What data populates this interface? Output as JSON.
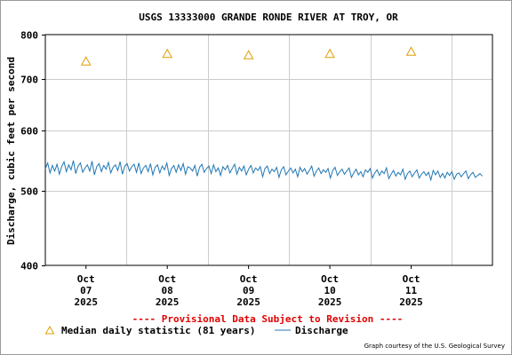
{
  "chart_data": {
    "type": "line",
    "title": "USGS 13333000 GRANDE RONDE RIVER AT TROY, OR",
    "ylabel": "Discharge, cubic feet per second",
    "xlabel": "",
    "yscale": "log",
    "ylim": [
      400,
      800
    ],
    "yticks": [
      "800",
      "700",
      "600",
      "500",
      "400"
    ],
    "xlim": [
      "2025-10-06",
      "2025-10-11T12:00"
    ],
    "xticks": [
      {
        "month": "Oct",
        "day": "07",
        "year": "2025"
      },
      {
        "month": "Oct",
        "day": "08",
        "year": "2025"
      },
      {
        "month": "Oct",
        "day": "09",
        "year": "2025"
      },
      {
        "month": "Oct",
        "day": "10",
        "year": "2025"
      },
      {
        "month": "Oct",
        "day": "11",
        "year": "2025"
      }
    ],
    "grid": true,
    "legend_position": "bottom",
    "series": [
      {
        "name": "Median daily statistic (81 years)",
        "kind": "marker",
        "color": "#e0a000",
        "x": [
          "2025-10-06T12:00",
          "2025-10-07T12:00",
          "2025-10-08T12:00",
          "2025-10-09T12:00",
          "2025-10-10T12:00"
        ],
        "values": [
          738,
          755,
          752,
          755,
          760
        ]
      },
      {
        "name": "Discharge",
        "kind": "line",
        "color": "#1f77b4",
        "x_start": "2025-10-06T00:00",
        "x_end": "2025-10-11T09:00",
        "values": [
          535,
          544,
          528,
          540,
          531,
          542,
          526,
          538,
          546,
          530,
          541,
          533,
          548,
          527,
          539,
          544,
          529,
          536,
          541,
          531,
          547,
          525,
          538,
          543,
          530,
          540,
          534,
          545,
          528,
          537,
          541,
          532,
          546,
          526,
          539,
          543,
          531,
          538,
          542,
          529,
          544,
          527,
          536,
          540,
          530,
          543,
          525,
          537,
          541,
          528,
          539,
          533,
          544,
          524,
          535,
          540,
          529,
          541,
          532,
          543,
          526,
          538,
          536,
          531,
          540,
          523,
          537,
          542,
          529,
          535,
          539,
          527,
          541,
          530,
          536,
          524,
          538,
          533,
          540,
          528,
          535,
          542,
          526,
          537,
          531,
          539,
          525,
          534,
          540,
          528,
          536,
          532,
          538,
          522,
          535,
          539,
          527,
          534,
          530,
          537,
          521,
          533,
          538,
          525,
          531,
          536,
          528,
          534,
          522,
          537,
          530,
          535,
          526,
          532,
          539,
          523,
          531,
          536,
          527,
          533,
          529,
          535,
          520,
          532,
          537,
          524,
          530,
          534,
          526,
          531,
          536,
          521,
          528,
          534,
          525,
          530,
          522,
          533,
          529,
          535,
          520,
          528,
          533,
          524,
          531,
          527,
          536,
          519,
          526,
          532,
          523,
          529,
          525,
          534,
          518,
          527,
          531,
          522,
          528,
          533,
          520,
          526,
          530,
          524,
          529,
          517,
          532,
          525,
          531,
          521,
          527,
          520,
          529,
          524,
          530,
          518,
          526,
          528,
          522,
          527,
          531,
          519,
          525,
          529,
          521,
          524,
          527,
          523
        ]
      }
    ]
  },
  "footer": {
    "provisional": "---- Provisional Data Subject to Revision ----",
    "legend_median": "Median daily statistic (81 years)",
    "legend_discharge": "Discharge",
    "courtesy": "Graph courtesy of the U.S. Geological Survey"
  },
  "colors": {
    "discharge": "#1f77b4",
    "median": "#e0a000",
    "provisional": "#e00000",
    "grid": "#cccccc"
  }
}
